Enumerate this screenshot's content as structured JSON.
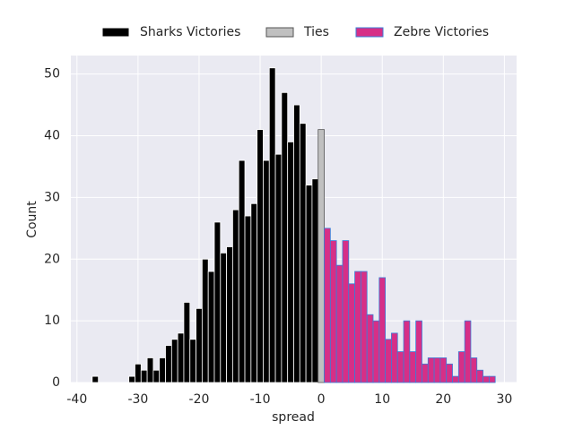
{
  "chart_data": {
    "type": "histogram",
    "xlabel": "spread",
    "ylabel": "Count",
    "xlim": [
      -41,
      32
    ],
    "ylim": [
      0,
      53
    ],
    "xticks": [
      -40,
      -30,
      -20,
      -10,
      0,
      10,
      20,
      30
    ],
    "yticks": [
      0,
      10,
      20,
      30,
      40,
      50
    ],
    "grid": true,
    "legend": "top",
    "series": [
      {
        "name": "Sharks Victories",
        "color": "#000000",
        "edgecolor": "#ffffff",
        "bins": [
          -37.5,
          -36.5,
          -35.5,
          -34.5,
          -33.5,
          -32.5,
          -31.5,
          -30.5,
          -29.5,
          -28.5,
          -27.5,
          -26.5,
          -25.5,
          -24.5,
          -23.5,
          -22.5,
          -21.5,
          -20.5,
          -19.5,
          -18.5,
          -17.5,
          -16.5,
          -15.5,
          -14.5,
          -13.5,
          -12.5,
          -11.5,
          -10.5,
          -9.5,
          -8.5,
          -7.5,
          -6.5,
          -5.5,
          -4.5,
          -3.5,
          -2.5,
          -1.5,
          -0.5
        ],
        "values": [
          1,
          0,
          0,
          0,
          0,
          0,
          1,
          3,
          2,
          4,
          2,
          4,
          6,
          7,
          8,
          13,
          7,
          12,
          20,
          18,
          26,
          21,
          22,
          28,
          36,
          27,
          29,
          41,
          36,
          51,
          37,
          47,
          39,
          45,
          42,
          32,
          33
        ]
      },
      {
        "name": "Ties",
        "color": "#c0c0c0",
        "edgecolor": "#555555",
        "bins": [
          -0.5,
          0.5
        ],
        "values": [
          41
        ]
      },
      {
        "name": "Zebre Victories",
        "color": "#d62f87",
        "edgecolor": "#3b7dd8",
        "bins": [
          0.5,
          1.5,
          2.5,
          3.5,
          4.5,
          5.5,
          6.5,
          7.5,
          8.5,
          9.5,
          10.5,
          11.5,
          12.5,
          13.5,
          14.5,
          15.5,
          16.5,
          17.5,
          18.5,
          19.5,
          20.5,
          21.5,
          22.5,
          23.5,
          24.5,
          25.5,
          26.5,
          27.5,
          28.5
        ],
        "values": [
          25,
          23,
          19,
          23,
          16,
          18,
          18,
          11,
          10,
          17,
          7,
          8,
          5,
          10,
          5,
          10,
          3,
          4,
          4,
          4,
          3,
          1,
          5,
          10,
          4,
          2,
          1,
          1
        ]
      }
    ]
  }
}
